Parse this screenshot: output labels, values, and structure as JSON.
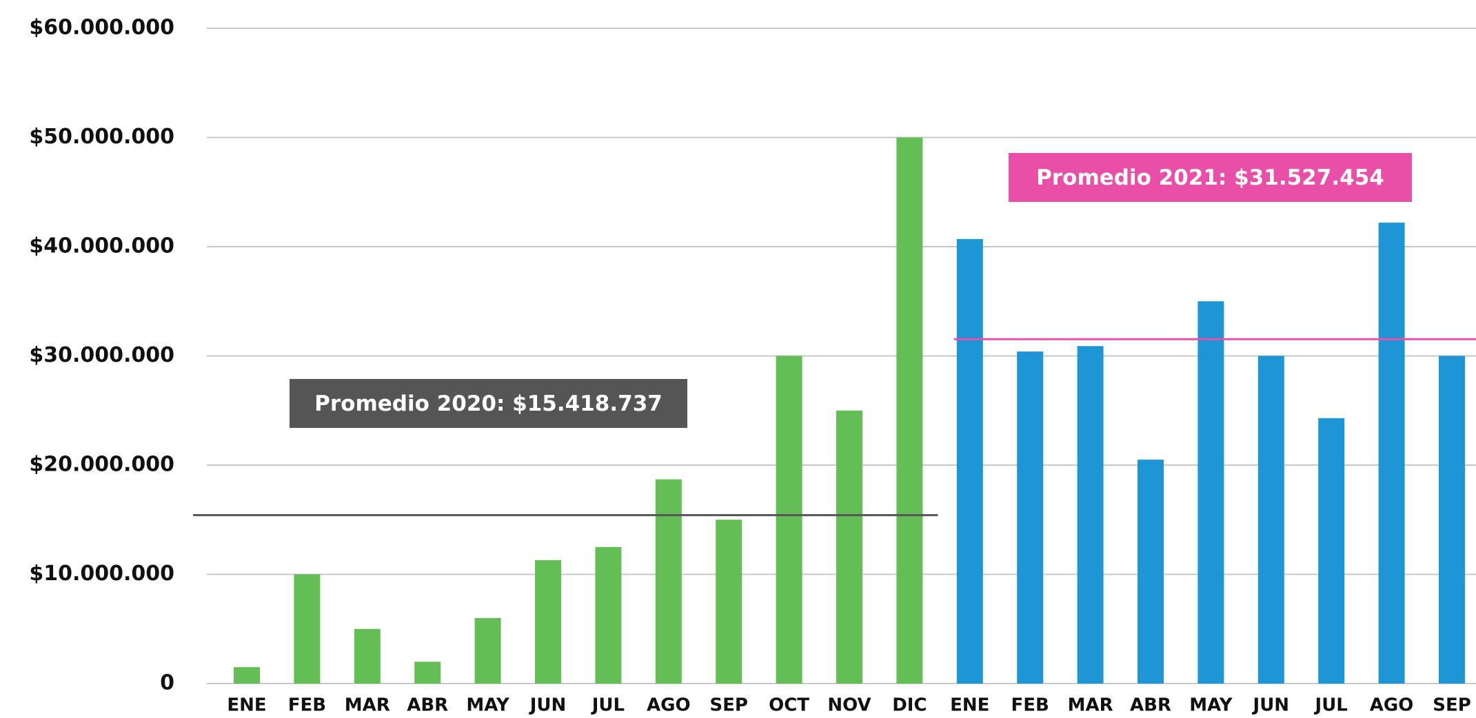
{
  "chart_data": {
    "type": "bar",
    "categories": [
      "ENE",
      "FEB",
      "MAR",
      "ABR",
      "MAY",
      "JUN",
      "JUL",
      "AGO",
      "SEP",
      "OCT",
      "NOV",
      "DIC",
      "ENE",
      "FEB",
      "MAR",
      "ABR",
      "MAY",
      "JUN",
      "JUL",
      "AGO",
      "SEP"
    ],
    "series": [
      {
        "color": "#63be55",
        "values": [
          1500000,
          10000000,
          5000000,
          2000000,
          6000000,
          11300000,
          12500000,
          18700000,
          15000000,
          30000000,
          25000000,
          50000000,
          null,
          null,
          null,
          null,
          null,
          null,
          null,
          null,
          null
        ],
        "average": {
          "value": 15418737,
          "label": "Promedio 2020: $15.418.737",
          "color": "#555555"
        }
      },
      {
        "color": "#1e95d4",
        "values": [
          null,
          null,
          null,
          null,
          null,
          null,
          null,
          null,
          null,
          null,
          null,
          null,
          40700000,
          30400000,
          30900000,
          20500000,
          35000000,
          30000000,
          24300000,
          42200000,
          30000000
        ],
        "average": {
          "value": 31527454,
          "label": "Promedio 2021: $31.527.454",
          "color": "#ea4fa8"
        }
      }
    ],
    "ylim": [
      0,
      60000000
    ],
    "yticks": [
      0,
      {
        "value": 10000000,
        "label": "$10.000.000"
      },
      {
        "value": 20000000,
        "label": "$20.000.000"
      },
      {
        "value": 30000000,
        "label": "$30.000.000"
      },
      {
        "value": 40000000,
        "label": "$40.000.000"
      },
      {
        "value": 50000000,
        "label": "$50.000.000"
      },
      {
        "value": 60000000,
        "label": "$60.000.000"
      }
    ],
    "grid": true
  }
}
